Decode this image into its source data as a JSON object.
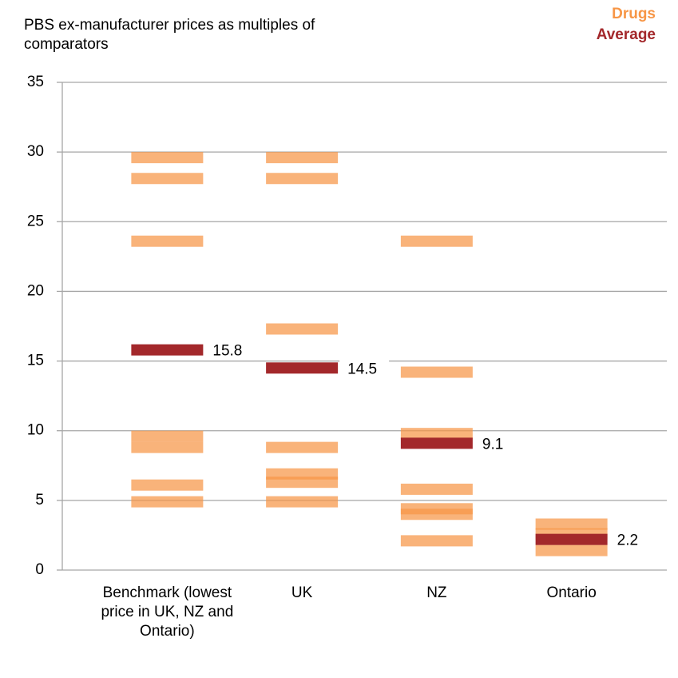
{
  "chart_data": {
    "type": "strip",
    "title": "PBS ex-manufacturer prices as multiples of comparators",
    "categories": [
      "Benchmark (lowest price in UK, NZ and Ontario)",
      "UK",
      "NZ",
      "Ontario"
    ],
    "series": [
      {
        "name": "Drugs",
        "color": "#f79646",
        "values": [
          [
            29.6,
            28.1,
            23.6,
            9.6,
            8.8,
            6.1,
            4.9
          ],
          [
            29.6,
            28.1,
            17.3,
            8.8,
            6.9,
            6.3,
            4.9
          ],
          [
            23.6,
            14.2,
            9.8,
            5.8,
            4.4,
            4.0,
            2.1
          ],
          [
            3.3,
            2.6,
            1.4
          ]
        ]
      },
      {
        "name": "Average",
        "color": "#a3282b",
        "values": [
          15.8,
          14.5,
          9.1,
          2.2
        ]
      }
    ],
    "ylim": [
      0,
      35
    ],
    "yticks": [
      0,
      5,
      10,
      15,
      20,
      25,
      30,
      35
    ],
    "grid": true,
    "legend": "top-right"
  }
}
